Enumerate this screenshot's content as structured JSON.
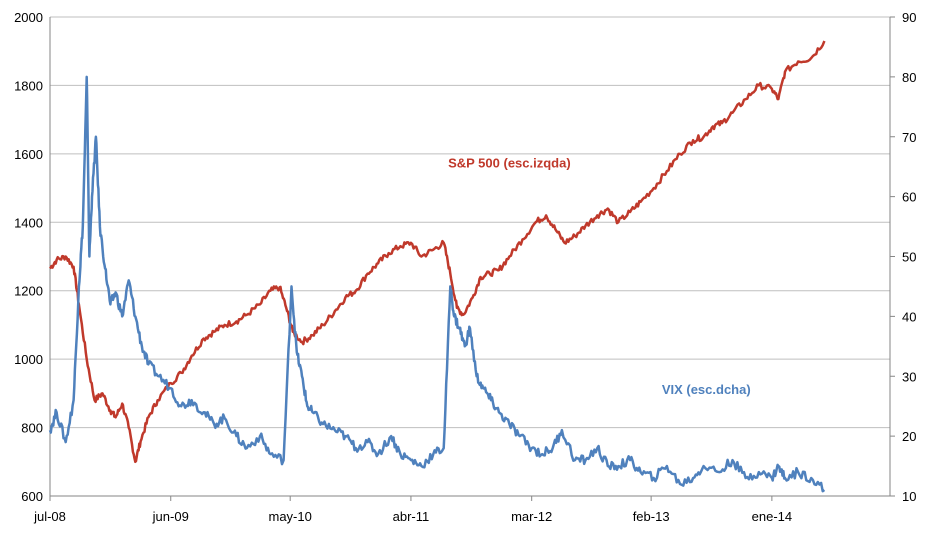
{
  "chart_data": {
    "type": "line",
    "title": "",
    "x_tick_labels": [
      "jul-08",
      "jun-09",
      "may-10",
      "abr-11",
      "mar-12",
      "feb-13",
      "ene-14"
    ],
    "x_range": [
      2008.5,
      2014.9
    ],
    "x_tick_positions": [
      2008.5,
      2009.42,
      2010.33,
      2011.25,
      2012.17,
      2013.08,
      2014.0
    ],
    "y_left": {
      "min": 600,
      "max": 2000,
      "step": 200,
      "labels": [
        "600",
        "800",
        "1000",
        "1200",
        "1400",
        "1600",
        "1800",
        "2000"
      ]
    },
    "y_right": {
      "min": 10,
      "max": 90,
      "step": 10,
      "labels": [
        "10",
        "20",
        "30",
        "40",
        "50",
        "60",
        "70",
        "80",
        "90"
      ]
    },
    "grid": true,
    "series": [
      {
        "name": "S&P 500 (esc.izqda)",
        "axis": "left",
        "color": "#c0392b",
        "x": [
          2008.5,
          2008.55,
          2008.62,
          2008.68,
          2008.72,
          2008.78,
          2008.84,
          2008.9,
          2008.96,
          2009.0,
          2009.05,
          2009.1,
          2009.15,
          2009.19,
          2009.25,
          2009.32,
          2009.42,
          2009.5,
          2009.58,
          2009.67,
          2009.75,
          2009.83,
          2009.92,
          2010.0,
          2010.1,
          2010.18,
          2010.25,
          2010.3,
          2010.35,
          2010.42,
          2010.5,
          2010.58,
          2010.67,
          2010.75,
          2010.83,
          2010.92,
          2011.0,
          2011.08,
          2011.17,
          2011.25,
          2011.33,
          2011.42,
          2011.5,
          2011.55,
          2011.6,
          2011.65,
          2011.72,
          2011.78,
          2011.85,
          2011.92,
          2012.0,
          2012.1,
          2012.2,
          2012.28,
          2012.35,
          2012.42,
          2012.5,
          2012.58,
          2012.67,
          2012.75,
          2012.83,
          2012.92,
          2013.0,
          2013.1,
          2013.2,
          2013.3,
          2013.4,
          2013.48,
          2013.55,
          2013.62,
          2013.7,
          2013.8,
          2013.9,
          2014.0,
          2014.05,
          2014.1,
          2014.2,
          2014.3,
          2014.4
        ],
        "values": [
          1265,
          1290,
          1300,
          1270,
          1160,
          1000,
          880,
          900,
          850,
          830,
          870,
          800,
          700,
          760,
          830,
          880,
          930,
          960,
          1010,
          1060,
          1080,
          1100,
          1110,
          1130,
          1160,
          1200,
          1210,
          1150,
          1080,
          1050,
          1070,
          1100,
          1140,
          1180,
          1200,
          1250,
          1280,
          1310,
          1330,
          1340,
          1300,
          1320,
          1340,
          1250,
          1150,
          1130,
          1180,
          1240,
          1250,
          1260,
          1300,
          1350,
          1400,
          1420,
          1380,
          1340,
          1360,
          1390,
          1420,
          1440,
          1400,
          1430,
          1460,
          1500,
          1550,
          1600,
          1640,
          1650,
          1680,
          1690,
          1720,
          1760,
          1800,
          1790,
          1760,
          1840,
          1870,
          1880,
          1930
        ]
      },
      {
        "name": "VIX (esc.dcha)",
        "axis": "right",
        "color": "#4f81bd",
        "x": [
          2008.5,
          2008.55,
          2008.62,
          2008.68,
          2008.72,
          2008.75,
          2008.78,
          2008.8,
          2008.82,
          2008.85,
          2008.88,
          2008.92,
          2008.96,
          2009.0,
          2009.05,
          2009.1,
          2009.15,
          2009.2,
          2009.25,
          2009.33,
          2009.42,
          2009.5,
          2009.58,
          2009.67,
          2009.75,
          2009.83,
          2009.92,
          2010.0,
          2010.1,
          2010.18,
          2010.28,
          2010.34,
          2010.38,
          2010.42,
          2010.46,
          2010.5,
          2010.58,
          2010.67,
          2010.75,
          2010.83,
          2010.92,
          2011.0,
          2011.1,
          2011.17,
          2011.25,
          2011.33,
          2011.42,
          2011.5,
          2011.55,
          2011.58,
          2011.62,
          2011.66,
          2011.7,
          2011.75,
          2011.8,
          2011.86,
          2011.92,
          2012.0,
          2012.08,
          2012.17,
          2012.25,
          2012.33,
          2012.4,
          2012.5,
          2012.58,
          2012.67,
          2012.75,
          2012.83,
          2012.92,
          2013.0,
          2013.1,
          2013.2,
          2013.3,
          2013.4,
          2013.48,
          2013.6,
          2013.7,
          2013.8,
          2013.9,
          2014.0,
          2014.05,
          2014.1,
          2014.2,
          2014.3,
          2014.4
        ],
        "values": [
          21,
          24,
          19,
          26,
          45,
          55,
          80,
          50,
          60,
          70,
          55,
          48,
          42,
          44,
          40,
          46,
          40,
          35,
          32,
          30,
          28,
          25,
          26,
          24,
          22,
          23,
          20,
          18,
          20,
          17,
          16,
          45,
          34,
          30,
          25,
          24,
          22,
          21,
          20,
          18,
          19,
          17,
          20,
          17,
          16,
          15,
          17,
          18,
          45,
          40,
          38,
          35,
          38,
          30,
          28,
          26,
          24,
          22,
          20,
          18,
          17,
          18,
          21,
          16,
          16,
          18,
          15,
          15,
          16,
          14,
          13,
          15,
          12,
          13,
          15,
          14,
          16,
          13,
          14,
          13,
          15,
          13,
          14,
          13,
          11
        ]
      }
    ],
    "annotations": [
      {
        "text": "S&P 500 (esc.izqda)",
        "series": 0,
        "at_x": 2012.0,
        "at_y_left": 1560
      },
      {
        "text": "VIX (esc.dcha)",
        "series": 1,
        "at_x": 2013.5,
        "at_y_right": 27
      }
    ]
  }
}
